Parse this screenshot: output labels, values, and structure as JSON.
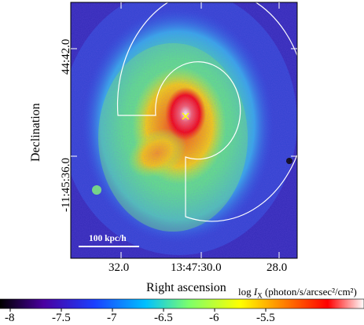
{
  "axes": {
    "xlabel": "Right ascension",
    "ylabel": "Declination",
    "x_ticks": [
      "32.0",
      "13:47:30.0",
      "28.0"
    ],
    "y_ticks": [
      "44:42.0",
      "-11:45:36.0"
    ]
  },
  "scale_bar": {
    "label": "100 kpc/h"
  },
  "colorbar": {
    "title_prefix": "log ",
    "title_var": "I",
    "title_sub": "X",
    "title_units": " (photon/s/arcsec²/cm²)",
    "ticks": [
      "-8",
      "-7.5",
      "-7",
      "-6.5",
      "-6",
      "-5.5"
    ],
    "colors": [
      "#000000",
      "#4a00a0",
      "#1a40ff",
      "#00c0ff",
      "#7dff6a",
      "#ffff00",
      "#ff8000",
      "#ff0000",
      "#ffffff"
    ]
  },
  "markers": {
    "center": "x-marker"
  }
}
